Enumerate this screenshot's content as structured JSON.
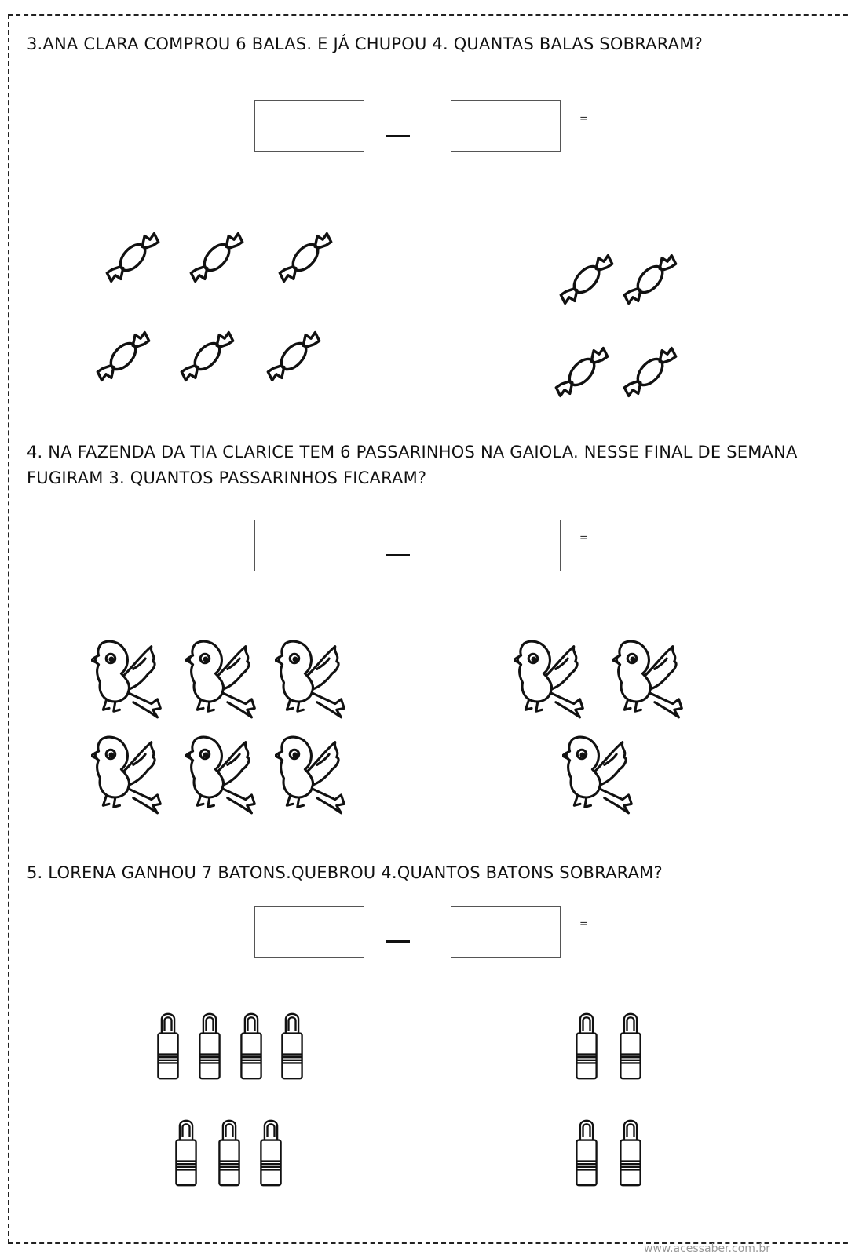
{
  "questions": [
    {
      "text": "3.ANA CLARA COMPROU 6 BALAS. E JÁ CHUPOU 4. QUANTAS BALAS SOBRARAM?",
      "equation": {
        "operator": "-",
        "equals": "="
      },
      "items": {
        "icon": "candy-icon",
        "left_group_count": 6,
        "right_group_count": 4
      }
    },
    {
      "text": "4. NA FAZENDA DA TIA CLARICE TEM 6 PASSARINHOS NA GAIOLA. NESSE FINAL DE SEMANA FUGIRAM 3. QUANTOS PASSARINHOS FICARAM?",
      "equation": {
        "operator": "-",
        "equals": "="
      },
      "items": {
        "icon": "bird-icon",
        "left_group_count": 6,
        "right_group_count": 3
      }
    },
    {
      "text": "5. LORENA GANHOU 7 BATONS.QUEBROU 4.QUANTOS BATONS SOBRARAM?",
      "equation": {
        "operator": "-",
        "equals": "="
      },
      "items": {
        "icon": "lipstick-icon",
        "left_group_count": 7,
        "right_group_count": 4
      }
    }
  ],
  "footer": {
    "url": "www.acessaber.com.br"
  }
}
